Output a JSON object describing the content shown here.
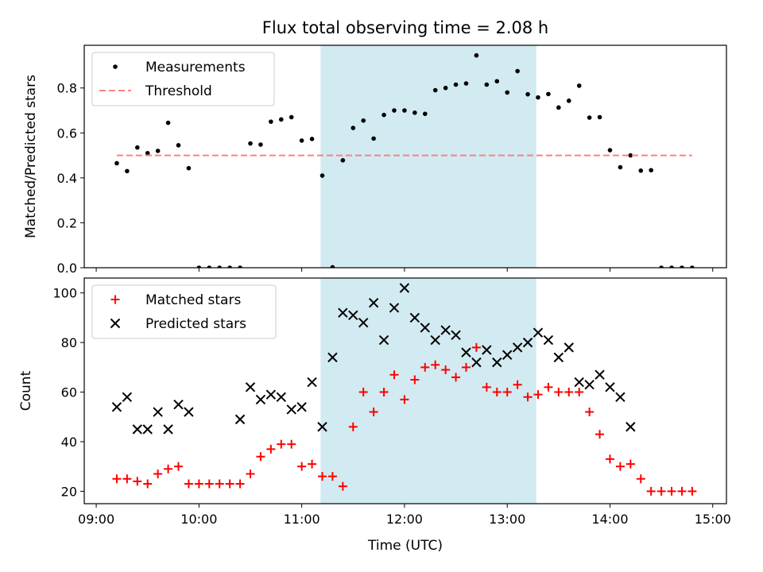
{
  "chart_data": {
    "title": "Flux total observing time = 2.08 h",
    "x_unit": "minutes after 09:00 UTC",
    "xlabel": "Time (UTC)",
    "xlim": [
      -7,
      368
    ],
    "x_ticks": [
      0,
      60,
      120,
      180,
      240,
      300,
      360
    ],
    "x_tick_labels": [
      "09:00",
      "10:00",
      "11:00",
      "12:00",
      "13:00",
      "14:00",
      "15:00"
    ],
    "shaded_interval": [
      131,
      257
    ],
    "colors": {
      "shade": "#add8e6",
      "matched": "#ff0000",
      "predicted": "#000000",
      "threshold": "#ff7f7f",
      "measurements": "#000000"
    },
    "charts": [
      {
        "type": "scatter",
        "ylabel": "Matched/Predicted stars",
        "ylim": [
          0,
          0.99
        ],
        "y_ticks": [
          0.0,
          0.2,
          0.4,
          0.6,
          0.8
        ],
        "y_tick_labels": [
          "0.0",
          "0.2",
          "0.4",
          "0.6",
          "0.8"
        ],
        "legend": "top-left",
        "series": [
          {
            "name": "Measurements",
            "marker": "dot",
            "x": [
              12,
              18,
              24,
              30,
              36,
              42,
              48,
              54,
              60,
              66,
              72,
              78,
              84,
              90,
              96,
              102,
              108,
              114,
              120,
              126,
              132,
              138,
              144,
              150,
              156,
              162,
              168,
              174,
              180,
              186,
              192,
              198,
              204,
              210,
              216,
              222,
              228,
              234,
              240,
              246,
              252,
              258,
              264,
              270,
              276,
              282,
              288,
              294,
              300,
              306,
              312,
              318,
              324,
              330,
              336,
              342,
              348
            ],
            "y": [
              0.465,
              0.43,
              0.535,
              0.51,
              0.52,
              0.645,
              0.545,
              0.443,
              0.0,
              0.0,
              0.0,
              0.0,
              0.0,
              0.553,
              0.548,
              0.65,
              0.66,
              0.67,
              0.566,
              0.573,
              0.41,
              0.002,
              0.478,
              0.622,
              0.655,
              0.575,
              0.68,
              0.7,
              0.7,
              0.69,
              0.685,
              0.79,
              0.8,
              0.815,
              0.82,
              0.945,
              0.815,
              0.83,
              0.78,
              0.875,
              0.772,
              0.758,
              0.773,
              0.713,
              0.743,
              0.81,
              0.668,
              0.67,
              0.523,
              0.447,
              0.5,
              0.432,
              0.434,
              0.0,
              0.0,
              0.0,
              0.0
            ]
          },
          {
            "name": "Threshold",
            "type": "line",
            "style": "dashed",
            "x": [
              12,
              348
            ],
            "y": [
              0.5,
              0.5
            ]
          }
        ]
      },
      {
        "type": "scatter",
        "ylabel": "Count",
        "ylim": [
          15,
          106
        ],
        "y_ticks": [
          20,
          40,
          60,
          80,
          100
        ],
        "y_tick_labels": [
          "20",
          "40",
          "60",
          "80",
          "100"
        ],
        "legend": "top-left",
        "series": [
          {
            "name": "Matched stars",
            "marker": "plus",
            "x": [
              12,
              18,
              24,
              30,
              36,
              42,
              48,
              54,
              60,
              66,
              72,
              78,
              84,
              90,
              96,
              102,
              108,
              114,
              120,
              126,
              132,
              138,
              144,
              150,
              156,
              162,
              168,
              174,
              180,
              186,
              192,
              198,
              204,
              210,
              216,
              222,
              228,
              234,
              240,
              246,
              252,
              258,
              264,
              270,
              276,
              282,
              288,
              294,
              300,
              306,
              312,
              318,
              324,
              330,
              336,
              342,
              348
            ],
            "y": [
              25,
              25,
              24,
              23,
              27,
              29,
              30,
              23,
              23,
              23,
              23,
              23,
              23,
              27,
              34,
              37,
              39,
              39,
              30,
              31,
              26,
              26,
              22,
              46,
              60,
              52,
              60,
              67,
              57,
              65,
              70,
              71,
              69,
              66,
              70,
              78,
              62,
              60,
              60,
              63,
              58,
              59,
              62,
              60,
              60,
              60,
              52,
              43,
              33,
              30,
              31,
              25,
              20,
              20,
              20,
              20,
              20
            ]
          },
          {
            "name": "Predicted stars",
            "marker": "x",
            "x": [
              12,
              18,
              24,
              30,
              36,
              42,
              48,
              54,
              84,
              90,
              96,
              102,
              108,
              114,
              120,
              126,
              132,
              138,
              144,
              150,
              156,
              162,
              168,
              174,
              180,
              186,
              192,
              198,
              204,
              210,
              216,
              222,
              228,
              234,
              240,
              246,
              252,
              258,
              264,
              270,
              276,
              282,
              288,
              294,
              300,
              306,
              312
            ],
            "y": [
              54,
              58,
              45,
              45,
              52,
              45,
              55,
              52,
              49,
              62,
              57,
              59,
              58,
              53,
              54,
              64,
              46,
              74,
              92,
              91,
              88,
              96,
              81,
              94,
              102,
              90,
              86,
              81,
              85,
              83,
              76,
              72,
              77,
              72,
              75,
              78,
              80,
              84,
              81,
              74,
              78,
              64,
              63,
              67,
              62,
              58,
              46
            ]
          }
        ]
      }
    ]
  }
}
